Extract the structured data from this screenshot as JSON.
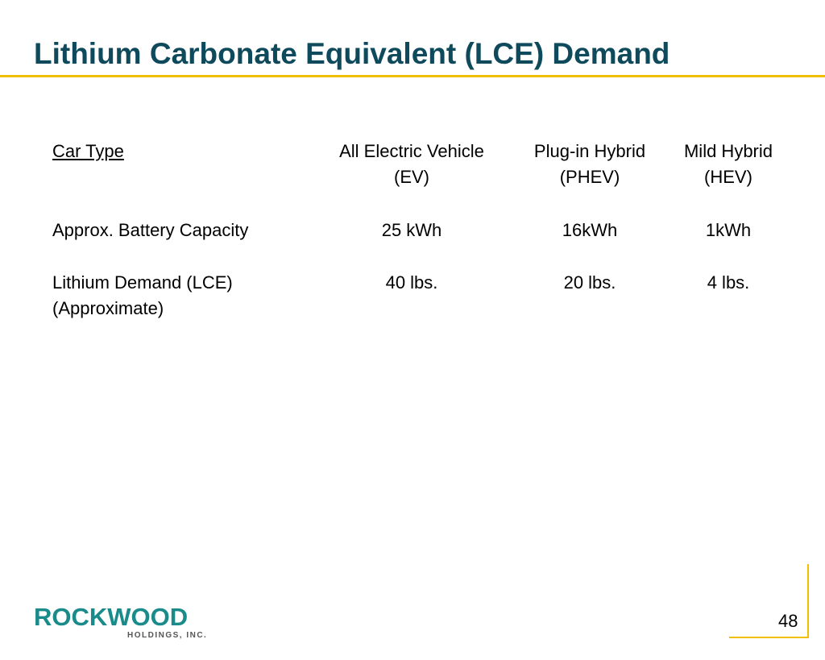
{
  "title": "Lithium Carbonate Equivalent (LCE) Demand",
  "table": {
    "header": [
      "Car Type",
      "All Electric Vehicle\n(EV)",
      "Plug-in Hybrid\n(PHEV)",
      "Mild Hybrid\n(HEV)"
    ],
    "rows": [
      [
        "Approx. Battery Capacity",
        "25 kWh",
        "16kWh",
        "1kWh"
      ],
      [
        "Lithium Demand (LCE)\n(Approximate)",
        "40 lbs.",
        "20 lbs.",
        "4 lbs."
      ]
    ]
  },
  "logo": {
    "name": "ROCKWOOD",
    "subtitle": "HOLDINGS, INC."
  },
  "page_number": "48"
}
